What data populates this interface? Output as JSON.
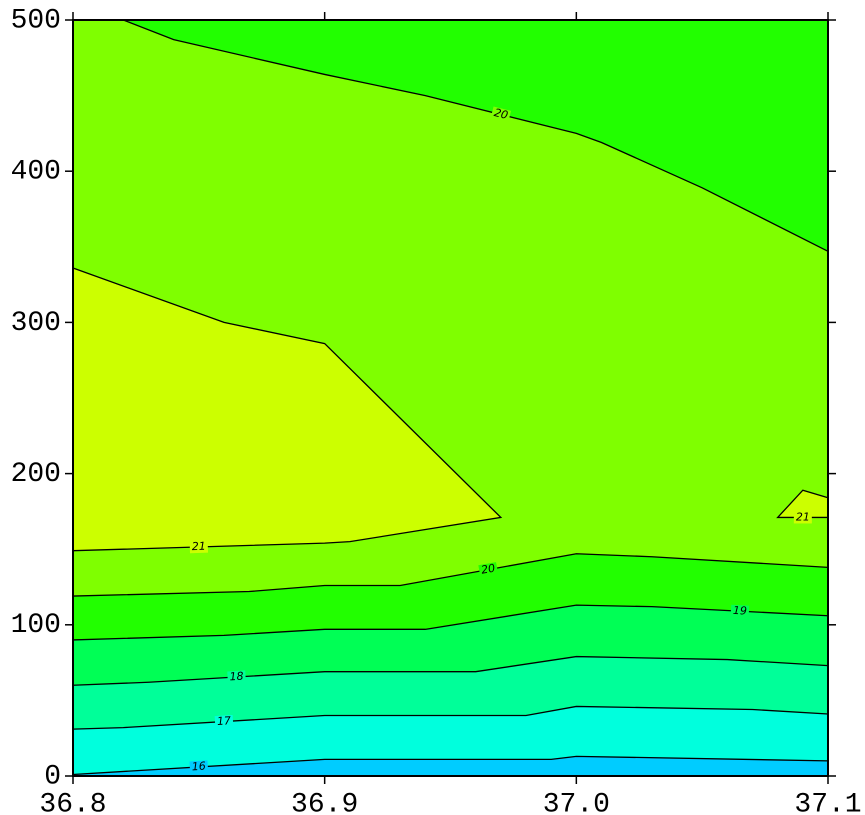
{
  "chart_data": {
    "type": "contour",
    "xlim": [
      36.8,
      37.1
    ],
    "ylim": [
      0,
      500
    ],
    "xticks": [
      36.8,
      36.9,
      {
        "value": 37,
        "label": "37.0"
      },
      37.1
    ],
    "yticks": [
      0,
      100,
      200,
      300,
      400,
      500
    ],
    "color": "#7fff00",
    "contours": [
      {
        "level": 20,
        "fill": "#22ff00",
        "fill_side": "above",
        "x": [
          36.82,
          36.84,
          36.9,
          36.94,
          37.0,
          37.01,
          37.05,
          37.1
        ],
        "y": [
          500,
          487,
          464,
          450,
          425,
          419,
          389,
          347
        ]
      },
      {
        "level": 20,
        "fill": "#22ff00",
        "fill_side": "below",
        "x": [
          36.8,
          36.87,
          36.9,
          36.93,
          37.0,
          37.03,
          37.1
        ],
        "y": [
          119,
          122,
          126,
          126,
          147,
          145,
          138
        ]
      },
      {
        "level": 19,
        "fill": "#00ff55",
        "fill_side": "below",
        "x": [
          36.8,
          36.86,
          36.9,
          36.94,
          37.0,
          37.03,
          37.1
        ],
        "y": [
          90,
          93,
          97,
          97,
          113,
          112,
          106
        ]
      },
      {
        "level": 18,
        "fill": "#00ff99",
        "fill_side": "below",
        "x": [
          36.8,
          36.83,
          36.9,
          36.96,
          37.0,
          37.06,
          37.1
        ],
        "y": [
          60,
          62,
          69,
          69,
          79,
          77,
          73
        ]
      },
      {
        "level": 17,
        "fill": "#00ffdd",
        "fill_side": "below",
        "x": [
          36.8,
          36.82,
          36.9,
          36.98,
          37.0,
          37.07,
          37.1
        ],
        "y": [
          31,
          32,
          40,
          40,
          46,
          44,
          41
        ]
      },
      {
        "level": 16,
        "fill": "#00ccff",
        "fill_side": "below",
        "x": [
          36.8,
          36.9,
          36.99,
          37.0,
          37.1
        ],
        "y": [
          1,
          11,
          11,
          13,
          10
        ]
      },
      {
        "level": 21,
        "fill": "#ccff00",
        "fill_side": "inside",
        "x": [
          36.8,
          36.9,
          36.91,
          36.97,
          36.9,
          36.86,
          36.8
        ],
        "y": [
          149,
          154,
          155,
          171,
          286,
          300,
          336
        ]
      },
      {
        "level": 21,
        "fill": "#ccff00",
        "fill_side": "inside",
        "x": [
          37.1,
          37.08,
          37.09,
          37.1
        ],
        "y": [
          171,
          171,
          189,
          184
        ]
      }
    ]
  }
}
